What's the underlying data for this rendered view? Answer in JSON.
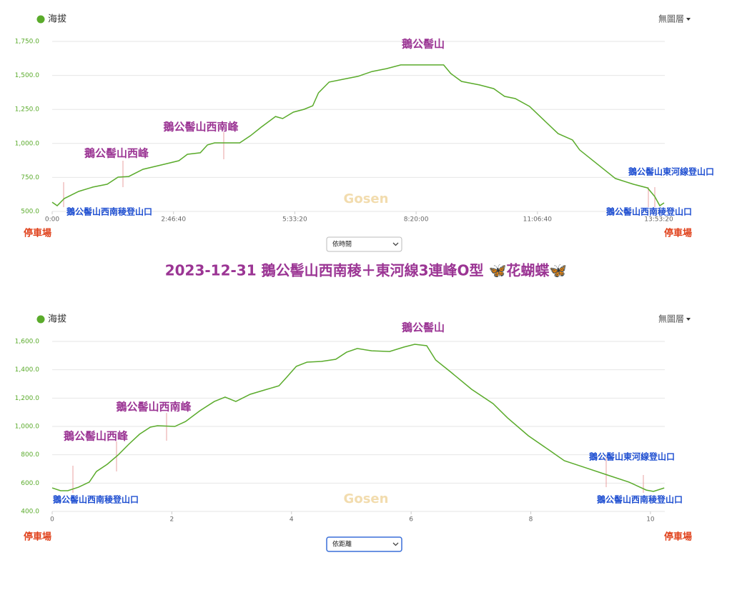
{
  "title": "2023-12-31 鵝公髻山西南稜＋東河線3連峰O型 🦋花蝴蝶🦋",
  "chart_data": [
    {
      "type": "line",
      "series": [
        {
          "name": "海拔",
          "color": "#5aab2b",
          "values": [
            568,
            542,
            595,
            647,
            679,
            700,
            752,
            757,
            810,
            847,
            873,
            920,
            931,
            989,
            1004,
            1004,
            1057,
            1120,
            1198,
            1183,
            1230,
            1251,
            1277,
            1372,
            1451,
            1472,
            1493,
            1529,
            1550,
            1577,
            1577,
            1514,
            1456,
            1430,
            1403,
            1346,
            1330,
            1272,
            1172,
            1072,
            1025,
            952,
            868,
            742,
            700,
            673,
            610,
            542,
            563
          ]
        }
      ],
      "x": [
        0,
        410,
        1000,
        2180,
        3360,
        4540,
        5430,
        6310,
        7490,
        9260,
        10440,
        11150,
        12210,
        12800,
        13390,
        15460,
        16350,
        17230,
        18410,
        19000,
        19880,
        20770,
        21480,
        21950,
        22830,
        24010,
        25200,
        26370,
        27560,
        28730,
        32270,
        32860,
        33750,
        35220,
        36400,
        37290,
        38170,
        39350,
        40530,
        41710,
        42890,
        43480,
        44660,
        46430,
        47900,
        49080,
        49670,
        50090,
        50440
      ],
      "xlim": [
        0,
        50500
      ],
      "xticks": [
        {
          "value": 0,
          "label": "0:00"
        },
        {
          "value": 10000,
          "label": "2:46:40"
        },
        {
          "value": 20000,
          "label": "5:33:20"
        },
        {
          "value": 30000,
          "label": "8:20:00"
        },
        {
          "value": 40000,
          "label": "11:06:40"
        },
        {
          "value": 50000,
          "label": "13:53:20"
        }
      ],
      "ylim": [
        500,
        1750
      ],
      "yticks": [
        {
          "value": 500,
          "label": "500.0"
        },
        {
          "value": 750,
          "label": "750.0"
        },
        {
          "value": 1000,
          "label": "1,000.0"
        },
        {
          "value": 1250,
          "label": "1,250.0"
        },
        {
          "value": 1500,
          "label": "1,500.0"
        },
        {
          "value": 1750,
          "label": "1,750.0"
        }
      ],
      "grid": true,
      "annotations": [
        {
          "text": "鵝公髻山",
          "color": "#9b3594"
        },
        {
          "text": "鵝公髻山西南峰",
          "color": "#9b3594"
        },
        {
          "text": "鵝公髻山西峰",
          "color": "#9b3594"
        },
        {
          "text": "鵝公髻山西南稜登山口",
          "color": "#1f4fd1"
        },
        {
          "text": "鵝公髻山東河線登山口",
          "color": "#1f4fd1"
        },
        {
          "text": "鵝公髻山西南稜登山口",
          "color": "#1f4fd1"
        }
      ],
      "watermark": "Gosen",
      "layer_menu": "無圖層",
      "x_mode": "依時間",
      "start_label": "停車場",
      "end_label": "停車場"
    },
    {
      "type": "line",
      "series": [
        {
          "name": "海拔",
          "color": "#5aab2b",
          "values": [
            566,
            546,
            546,
            571,
            607,
            682,
            733,
            798,
            874,
            945,
            995,
            1005,
            1000,
            1035,
            1111,
            1176,
            1207,
            1176,
            1227,
            1257,
            1287,
            1338,
            1424,
            1454,
            1459,
            1474,
            1524,
            1550,
            1534,
            1529,
            1560,
            1580,
            1570,
            1469,
            1388,
            1262,
            1161,
            1061,
            934,
            829,
            758,
            708,
            657,
            607,
            551,
            541,
            566
          ]
        }
      ],
      "x": [
        0,
        0.14,
        0.26,
        0.44,
        0.62,
        0.74,
        0.92,
        1.1,
        1.28,
        1.46,
        1.64,
        1.76,
        2.05,
        2.23,
        2.47,
        2.71,
        2.89,
        3.07,
        3.31,
        3.55,
        3.79,
        3.9,
        4.08,
        4.26,
        4.5,
        4.74,
        4.92,
        5.1,
        5.34,
        5.64,
        5.88,
        6.06,
        6.26,
        6.41,
        6.65,
        7.01,
        7.37,
        7.61,
        7.96,
        8.32,
        8.56,
        8.92,
        9.28,
        9.64,
        9.93,
        10.05,
        10.23
      ],
      "xlim": [
        0,
        10.24
      ],
      "xticks": [
        0,
        2,
        4,
        6,
        8,
        10
      ],
      "ylim": [
        400,
        1600
      ],
      "yticks": [
        {
          "value": 400,
          "label": "400.0"
        },
        {
          "value": 600,
          "label": "600.0"
        },
        {
          "value": 800,
          "label": "800.0"
        },
        {
          "value": 1000,
          "label": "1,000.0"
        },
        {
          "value": 1200,
          "label": "1,200.0"
        },
        {
          "value": 1400,
          "label": "1,400.0"
        },
        {
          "value": 1600,
          "label": "1,600.0"
        }
      ],
      "grid": true,
      "annotations": [
        {
          "text": "鵝公髻山",
          "color": "#9b3594"
        },
        {
          "text": "鵝公髻山西南峰",
          "color": "#9b3594"
        },
        {
          "text": "鵝公髻山西峰",
          "color": "#9b3594"
        },
        {
          "text": "鵝公髻山西南稜登山口",
          "color": "#1f4fd1"
        },
        {
          "text": "鵝公髻山東河線登山口",
          "color": "#1f4fd1"
        },
        {
          "text": "鵝公髻山西南稜登山口",
          "color": "#1f4fd1"
        }
      ],
      "watermark": "Gosen",
      "layer_menu": "無圖層",
      "x_mode": "依距離",
      "start_label": "停車場",
      "end_label": "停車場"
    }
  ]
}
